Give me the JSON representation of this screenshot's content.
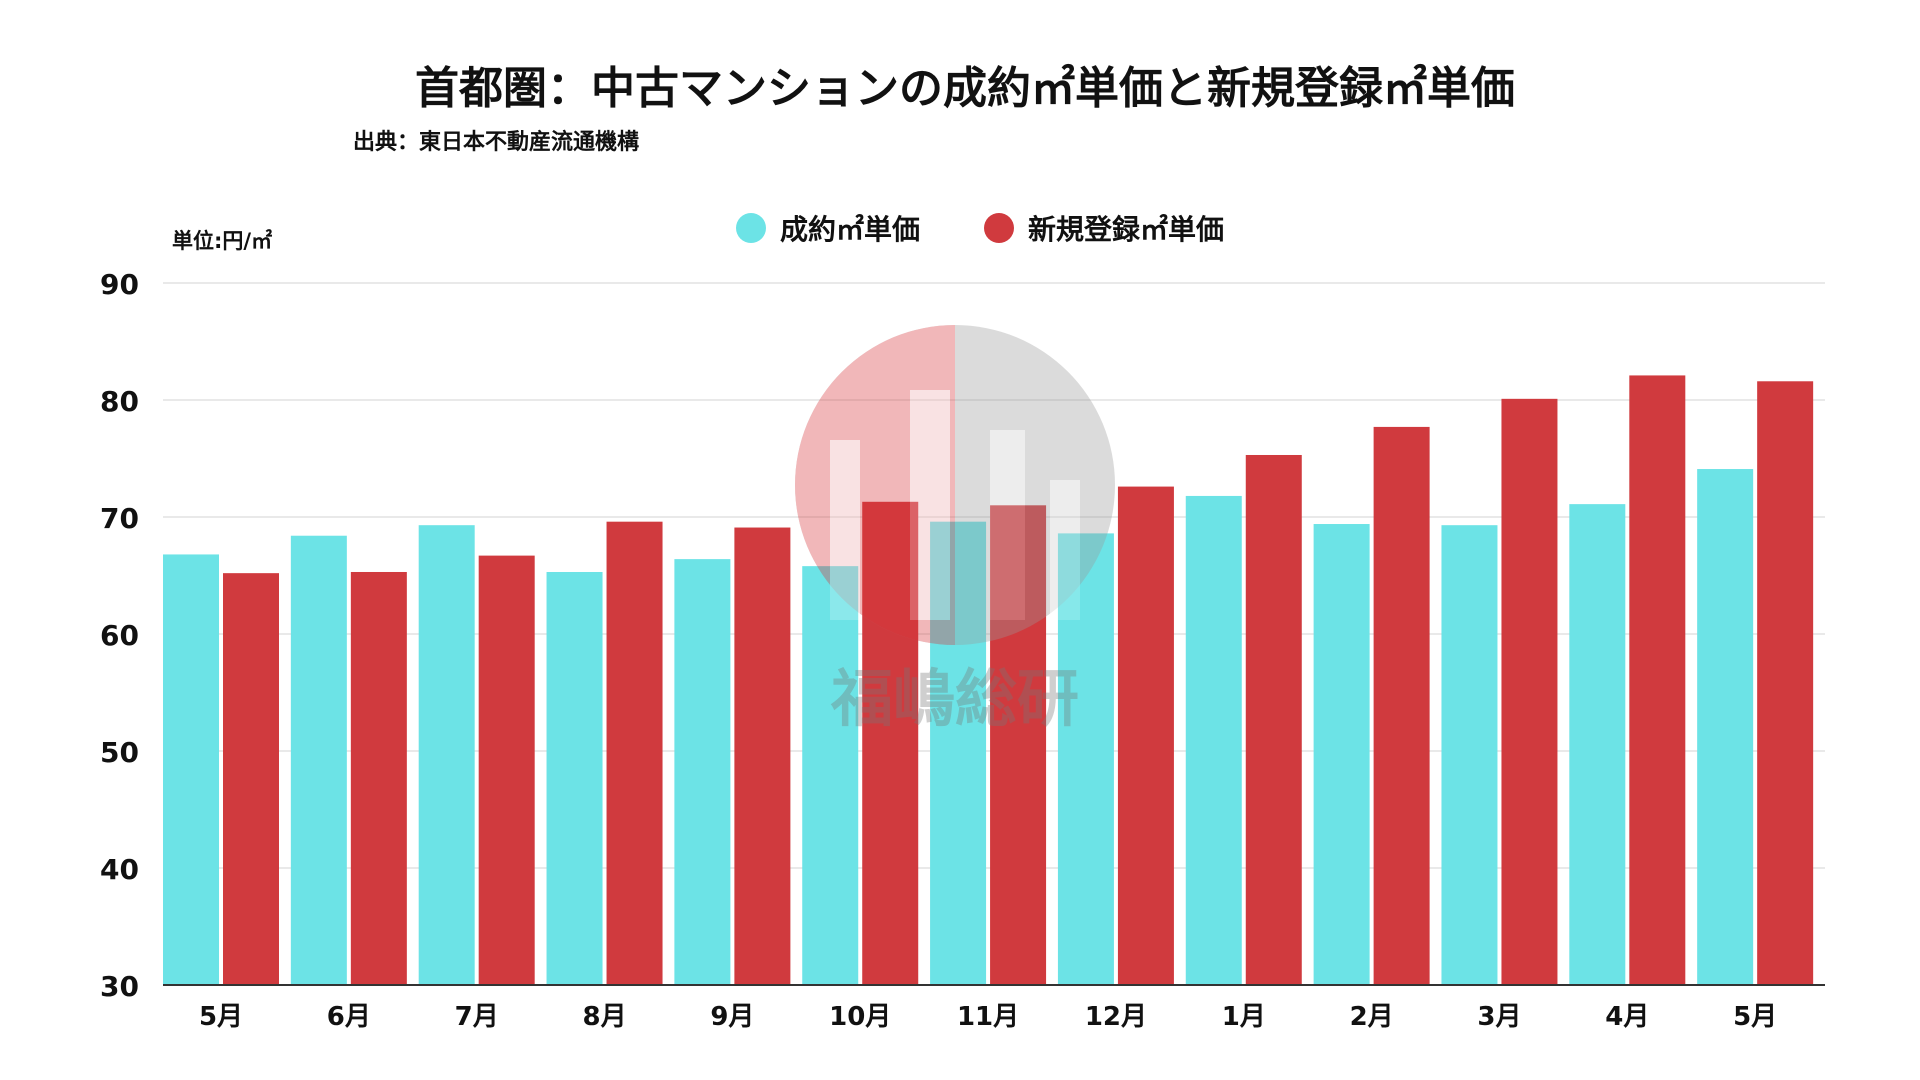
{
  "title": "首都圏：中古マンションの成約㎡単価と新規登録㎡単価",
  "source": "出典：東日本不動産流通機構",
  "unit_label": "単位:円/㎡",
  "watermark_text": "福嶋総研",
  "colors": {
    "series1": "#6ce3e6",
    "series2": "#d03a3e",
    "grid": "#e2e2e2",
    "axis": "#333333"
  },
  "chart_data": {
    "type": "bar",
    "categories": [
      "5月",
      "6月",
      "7月",
      "8月",
      "9月",
      "10月",
      "11月",
      "12月",
      "1月",
      "2月",
      "3月",
      "4月",
      "5月"
    ],
    "series": [
      {
        "name": "成約㎡単価",
        "values": [
          66.8,
          68.4,
          69.3,
          65.3,
          66.4,
          65.8,
          69.6,
          68.6,
          71.8,
          69.4,
          69.3,
          71.1,
          74.1
        ]
      },
      {
        "name": "新規登録㎡単価",
        "values": [
          65.2,
          65.3,
          66.7,
          69.6,
          69.1,
          71.3,
          71.0,
          72.6,
          75.3,
          77.7,
          80.1,
          82.1,
          81.6
        ]
      }
    ],
    "ylim": [
      30,
      90
    ],
    "yticks": [
      30,
      40,
      50,
      60,
      70,
      80,
      90
    ],
    "grid": true,
    "legend_position": "top-center",
    "xlabel": "",
    "ylabel": ""
  }
}
